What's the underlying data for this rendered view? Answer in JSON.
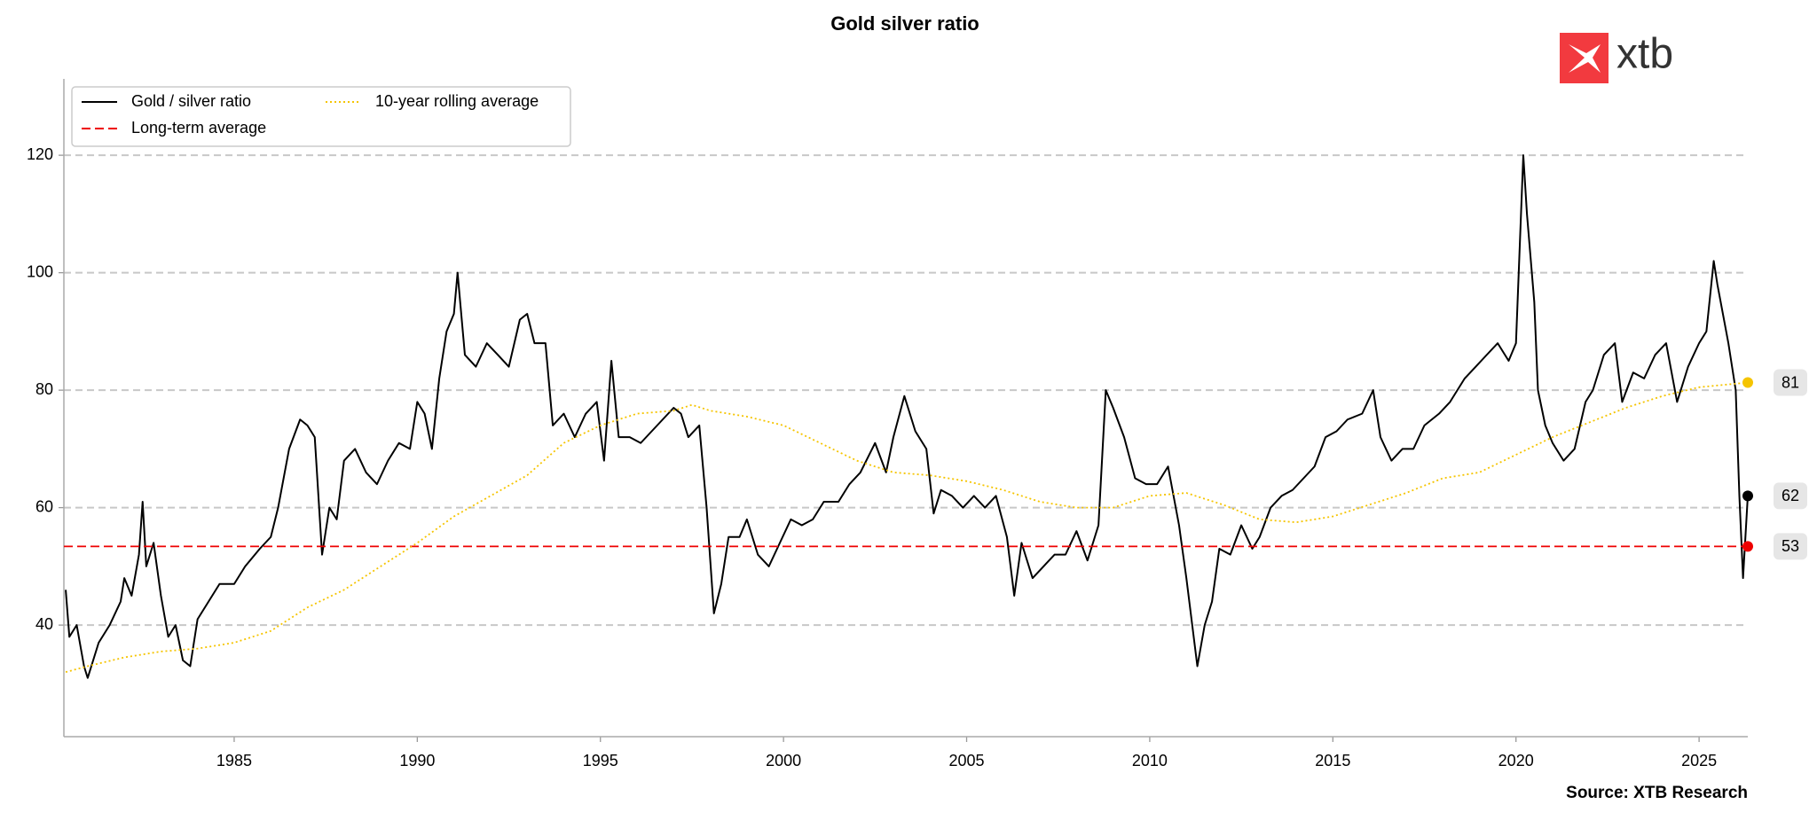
{
  "chart_data": {
    "type": "line",
    "title": "Gold silver ratio",
    "source": "Source: XTB Research",
    "logo_text": "xtb",
    "xlim": [
      1980.35,
      2026.33
    ],
    "ylim": [
      21,
      133
    ],
    "xticks": [
      1985,
      1990,
      1995,
      2000,
      2005,
      2010,
      2015,
      2020,
      2025
    ],
    "yticks": [
      40,
      60,
      80,
      100,
      120
    ],
    "grid": true,
    "legend": "upper left",
    "series": [
      {
        "name": "Gold / silver ratio",
        "color": "#000000",
        "style": "solid",
        "end_label": "62",
        "x": [
          1980.4,
          1980.5,
          1980.7,
          1980.9,
          1981.0,
          1981.3,
          1981.6,
          1981.9,
          1982.0,
          1982.2,
          1982.4,
          1982.5,
          1982.6,
          1982.8,
          1983.0,
          1983.2,
          1983.4,
          1983.6,
          1983.8,
          1984.0,
          1984.3,
          1984.6,
          1985.0,
          1985.3,
          1985.7,
          1986.0,
          1986.2,
          1986.5,
          1986.8,
          1987.0,
          1987.2,
          1987.4,
          1987.6,
          1987.8,
          1988.0,
          1988.3,
          1988.6,
          1988.9,
          1989.2,
          1989.5,
          1989.8,
          1990.0,
          1990.2,
          1990.4,
          1990.6,
          1990.8,
          1991.0,
          1991.1,
          1991.3,
          1991.6,
          1991.9,
          1992.2,
          1992.5,
          1992.8,
          1993.0,
          1993.2,
          1993.5,
          1993.7,
          1994.0,
          1994.3,
          1994.6,
          1994.9,
          1995.1,
          1995.3,
          1995.5,
          1995.8,
          1996.1,
          1996.4,
          1996.7,
          1997.0,
          1997.2,
          1997.4,
          1997.7,
          1997.9,
          1998.1,
          1998.3,
          1998.5,
          1998.8,
          1999.0,
          1999.3,
          1999.6,
          1999.9,
          2000.2,
          2000.5,
          2000.8,
          2001.1,
          2001.5,
          2001.8,
          2002.1,
          2002.5,
          2002.8,
          2003.0,
          2003.3,
          2003.6,
          2003.9,
          2004.1,
          2004.3,
          2004.6,
          2004.9,
          2005.2,
          2005.5,
          2005.8,
          2006.1,
          2006.3,
          2006.5,
          2006.8,
          2007.1,
          2007.4,
          2007.7,
          2008.0,
          2008.3,
          2008.6,
          2008.8,
          2009.0,
          2009.3,
          2009.6,
          2009.9,
          2010.2,
          2010.5,
          2010.8,
          2011.0,
          2011.3,
          2011.5,
          2011.7,
          2011.9,
          2012.2,
          2012.5,
          2012.8,
          2013.0,
          2013.3,
          2013.6,
          2013.9,
          2014.2,
          2014.5,
          2014.8,
          2015.1,
          2015.4,
          2015.8,
          2016.1,
          2016.3,
          2016.6,
          2016.9,
          2017.2,
          2017.5,
          2017.9,
          2018.2,
          2018.6,
          2018.9,
          2019.2,
          2019.5,
          2019.8,
          2020.0,
          2020.2,
          2020.3,
          2020.5,
          2020.6,
          2020.8,
          2021.0,
          2021.3,
          2021.6,
          2021.9,
          2022.1,
          2022.4,
          2022.7,
          2022.9,
          2023.2,
          2023.5,
          2023.8,
          2024.1,
          2024.4,
          2024.7,
          2025.0,
          2025.2,
          2025.4,
          2025.5,
          2025.8,
          2026.0,
          2026.1,
          2026.2,
          2026.33
        ],
        "values": [
          46,
          38,
          40,
          33,
          31,
          37,
          40,
          44,
          48,
          45,
          52,
          61,
          50,
          54,
          45,
          38,
          40,
          34,
          33,
          41,
          44,
          47,
          47,
          50,
          53,
          55,
          60,
          70,
          75,
          74,
          72,
          52,
          60,
          58,
          68,
          70,
          66,
          64,
          68,
          71,
          70,
          78,
          76,
          70,
          82,
          90,
          93,
          100,
          86,
          84,
          88,
          86,
          84,
          92,
          93,
          88,
          88,
          74,
          76,
          72,
          76,
          78,
          68,
          85,
          72,
          72,
          71,
          73,
          75,
          77,
          76,
          72,
          74,
          60,
          42,
          47,
          55,
          55,
          58,
          52,
          50,
          54,
          58,
          57,
          58,
          61,
          61,
          64,
          66,
          71,
          66,
          72,
          79,
          73,
          70,
          59,
          63,
          62,
          60,
          62,
          60,
          62,
          55,
          45,
          54,
          48,
          50,
          52,
          52,
          56,
          51,
          57,
          80,
          77,
          72,
          65,
          64,
          64,
          67,
          57,
          48,
          33,
          40,
          44,
          53,
          52,
          57,
          53,
          55,
          60,
          62,
          63,
          65,
          67,
          72,
          73,
          75,
          76,
          80,
          72,
          68,
          70,
          70,
          74,
          76,
          78,
          82,
          84,
          86,
          88,
          85,
          88,
          120,
          110,
          95,
          80,
          74,
          71,
          68,
          70,
          78,
          80,
          86,
          88,
          78,
          83,
          82,
          86,
          88,
          78,
          84,
          88,
          90,
          102,
          98,
          88,
          80,
          62,
          48,
          62
        ]
      },
      {
        "name": "Long-term average",
        "color": "#ee0000",
        "style": "dashed",
        "end_label": "53",
        "x": [
          1980.35,
          2026.33
        ],
        "values": [
          53.4,
          53.4
        ]
      },
      {
        "name": "10-year rolling average",
        "color": "#f5c400",
        "style": "dotted",
        "end_label": "81",
        "x": [
          1980.4,
          1981,
          1982,
          1983,
          1984,
          1985,
          1986,
          1987,
          1988,
          1989,
          1990,
          1991,
          1992,
          1993,
          1994,
          1995,
          1996,
          1997,
          1997.5,
          1998,
          1999,
          2000,
          2001,
          2002,
          2003,
          2004,
          2005,
          2006,
          2007,
          2008,
          2009,
          2010,
          2011,
          2012,
          2013,
          2014,
          2015,
          2016,
          2017,
          2018,
          2019,
          2020,
          2021,
          2022,
          2023,
          2024,
          2025,
          2026.33
        ],
        "values": [
          32,
          33,
          34.5,
          35.5,
          36,
          37,
          39,
          43,
          46,
          50,
          54,
          58.5,
          62,
          65.5,
          71,
          74,
          76,
          76.5,
          77.5,
          76.5,
          75.5,
          74,
          71,
          68,
          66,
          65.5,
          64.5,
          63,
          61,
          60,
          60,
          62,
          62.5,
          60.5,
          58,
          57.5,
          58.5,
          60.5,
          62.5,
          65,
          66,
          69,
          72,
          74.5,
          77,
          79,
          80.5,
          81.3
        ]
      }
    ]
  }
}
